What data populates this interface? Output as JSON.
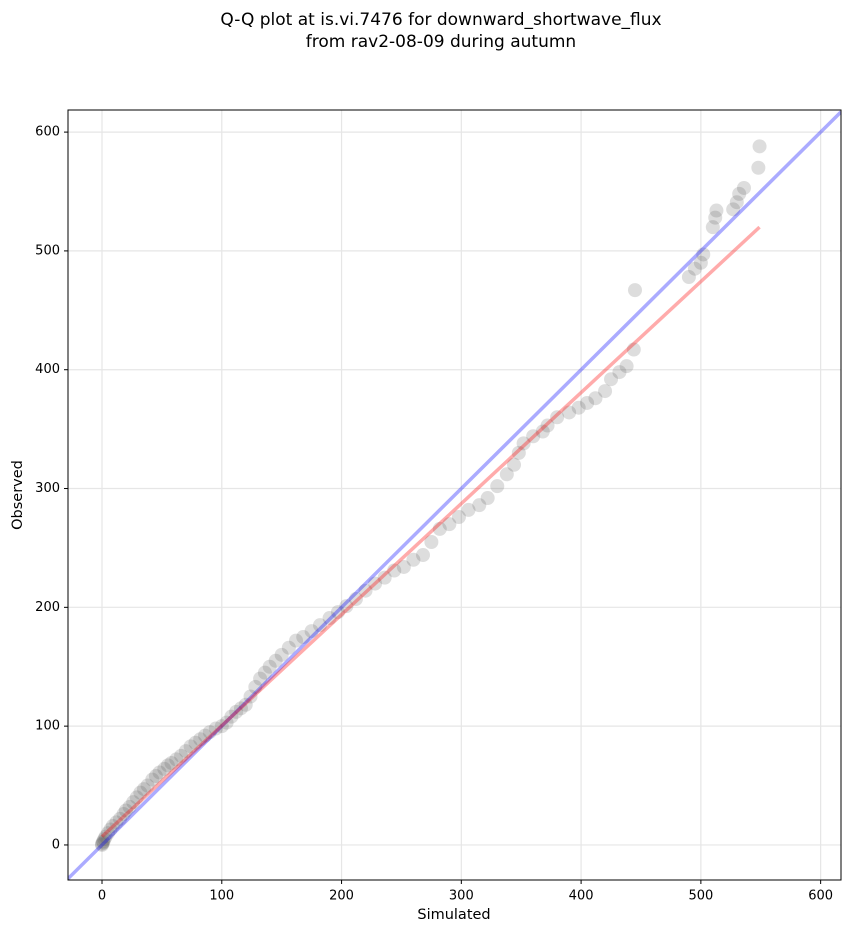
{
  "chart_data": {
    "type": "scatter",
    "title": [
      "Q-Q plot at is.vi.7476 for downward_shortwave_flux",
      "from rav2-08-09 during autumn"
    ],
    "x_label": "Simulated",
    "y_label": "Observed",
    "xlim": [
      -28.4,
      617
    ],
    "ylim": [
      -29.5,
      618.6
    ],
    "xticks": [
      0,
      100,
      200,
      300,
      400,
      500,
      600
    ],
    "yticks": [
      0,
      100,
      200,
      300,
      400,
      500,
      600
    ],
    "grid": true,
    "series": [
      {
        "type": "scatter",
        "color": "#555555",
        "x": [
          0,
          0,
          1,
          1,
          2,
          3,
          5,
          7,
          9,
          12,
          15,
          18,
          20,
          23,
          26,
          29,
          32,
          35,
          38,
          42,
          45,
          48,
          52,
          55,
          58,
          62,
          66,
          70,
          74,
          78,
          82,
          86,
          90,
          95,
          100,
          104,
          108,
          112,
          116,
          120,
          124,
          128,
          132,
          136,
          140,
          145,
          150,
          156,
          162,
          168,
          175,
          182,
          190,
          197,
          204,
          212,
          220,
          228,
          236,
          244,
          252,
          260,
          268,
          275,
          282,
          290,
          298,
          306,
          315,
          322,
          330,
          338,
          344,
          348,
          352,
          360,
          368,
          372,
          380,
          390,
          398,
          405,
          412,
          420,
          425,
          432,
          438,
          444,
          445,
          490,
          495,
          500,
          502,
          510,
          512,
          513,
          527,
          530,
          532,
          536,
          548,
          549
        ],
        "y": [
          0,
          1,
          2,
          3,
          5,
          7,
          10,
          13,
          16,
          19,
          22,
          26,
          29,
          32,
          36,
          40,
          44,
          47,
          50,
          55,
          58,
          61,
          64,
          67,
          69,
          72,
          75,
          79,
          83,
          86,
          89,
          92,
          95,
          98,
          100,
          103,
          108,
          112,
          115,
          118,
          125,
          133,
          140,
          145,
          150,
          155,
          160,
          166,
          172,
          175,
          180,
          185,
          191,
          196,
          201,
          207,
          214,
          220,
          225,
          231,
          234,
          240,
          244,
          255,
          266,
          270,
          276,
          282,
          286,
          292,
          302,
          312,
          320,
          330,
          338,
          344,
          348,
          353,
          360,
          364,
          368,
          372,
          376,
          382,
          392,
          398,
          403,
          417,
          467,
          478,
          485,
          490,
          497,
          520,
          528,
          534,
          535,
          541,
          548,
          553,
          570,
          588
        ]
      },
      {
        "type": "line",
        "color": "#0000ff",
        "x": [
          -28.4,
          617
        ],
        "y": [
          -28.4,
          617
        ]
      },
      {
        "type": "line",
        "color": "#ff0000",
        "x": [
          0,
          549
        ],
        "y": [
          7,
          520
        ]
      }
    ]
  }
}
